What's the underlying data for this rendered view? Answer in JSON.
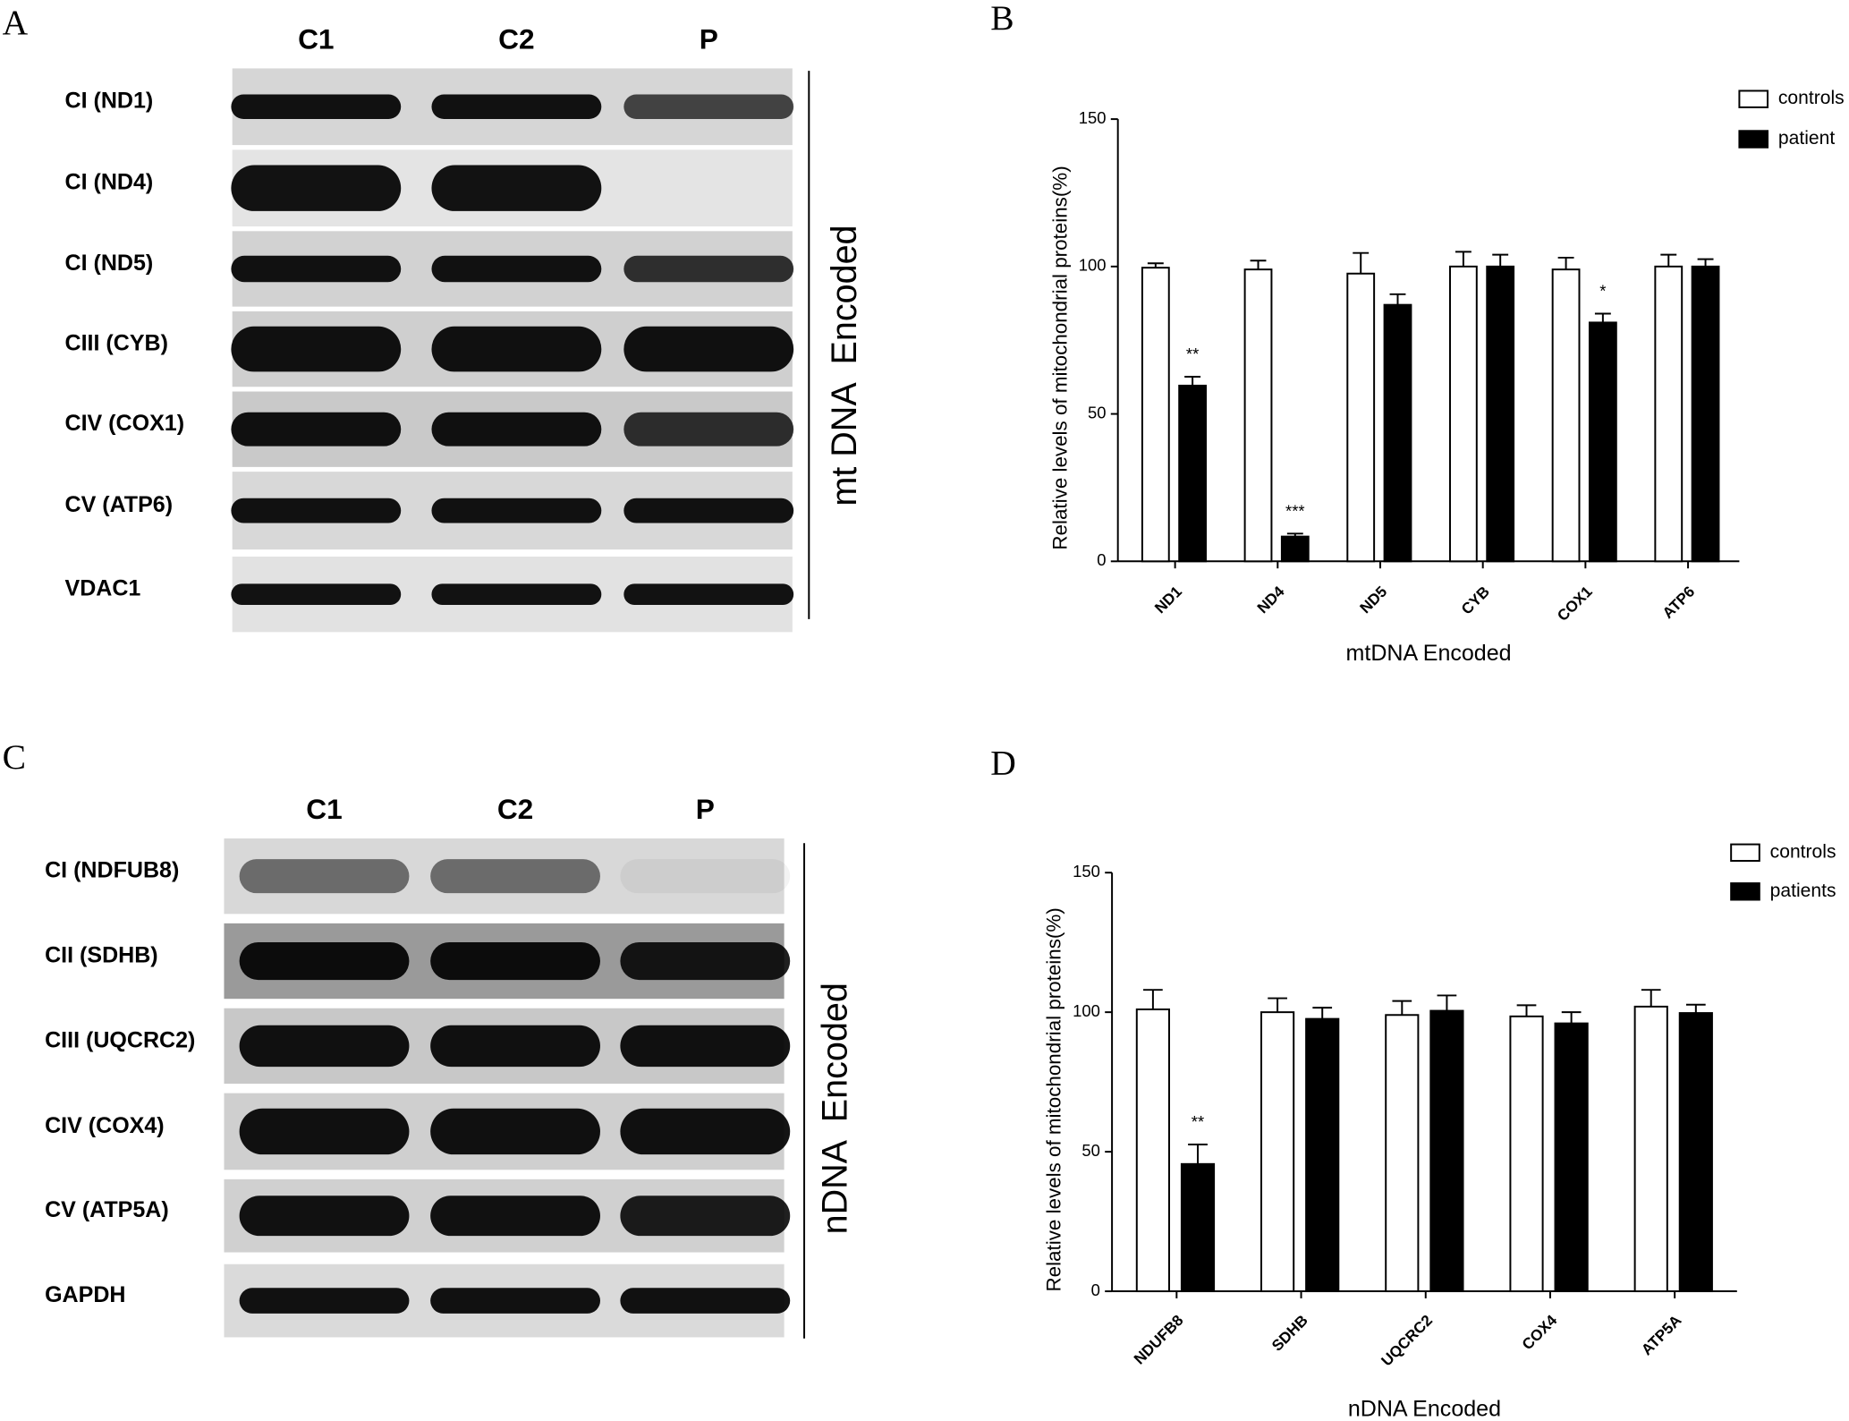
{
  "panels": [
    "A",
    "B",
    "C",
    "D"
  ],
  "blots": [
    {
      "lanes": [
        "C1",
        "C2",
        "P"
      ],
      "rows": [
        "CI (ND1)",
        "CI (ND4)",
        "CI (ND5)",
        "CIII (CYB)",
        "CIV (COX1)",
        "CV (ATP6)",
        "VDAC1"
      ],
      "side_label": "mt DNA  Encoded"
    },
    {
      "lanes": [
        "C1",
        "C2",
        "P"
      ],
      "rows": [
        "CI (NDFUB8)",
        "CII (SDHB)",
        "CIII (UQCRC2)",
        "CIV (COX4)",
        "CV (ATP5A)",
        "GAPDH"
      ],
      "side_label": "nDNA  Encoded"
    }
  ],
  "chart_data": [
    {
      "type": "bar",
      "xlabel": "mtDNA Encoded",
      "ylabel": "Relative levels of mitochondrial proteins(%)",
      "categories": [
        "ND1",
        "ND4",
        "ND5",
        "CYB",
        "COX1",
        "ATP6"
      ],
      "series": [
        {
          "name": "controls",
          "color": "#ffffff",
          "values": [
            99.6,
            99,
            97.6,
            100,
            99,
            100
          ],
          "errors": [
            1.5,
            3,
            7,
            5,
            4,
            4
          ],
          "significance": [
            null,
            null,
            null,
            null,
            null,
            null
          ]
        },
        {
          "name": "patient",
          "color": "#000000",
          "values": [
            59.6,
            8.4,
            87,
            100,
            81,
            100
          ],
          "errors": [
            3,
            1,
            3.6,
            4,
            3,
            2.5
          ],
          "significance": [
            "**",
            "***",
            null,
            null,
            "*",
            null
          ]
        }
      ],
      "ylim": [
        0,
        150
      ],
      "yticks": [
        0,
        50,
        100,
        150
      ],
      "legend": "top-right"
    },
    {
      "type": "bar",
      "xlabel": "nDNA Encoded",
      "ylabel": "Relative levels of mitochondrial proteins(%)",
      "categories": [
        "NDUFB8",
        "SDHB",
        "UQCRC2",
        "COX4",
        "ATP5A"
      ],
      "series": [
        {
          "name": "controls",
          "color": "#ffffff",
          "values": [
            101,
            100,
            99,
            98.5,
            102
          ],
          "errors": [
            7,
            5,
            5,
            4,
            6
          ],
          "significance": [
            null,
            null,
            null,
            null,
            null
          ]
        },
        {
          "name": "patients",
          "color": "#000000",
          "values": [
            45.6,
            97.6,
            100.5,
            96,
            99.7
          ],
          "errors": [
            7,
            4,
            5.5,
            4,
            3
          ],
          "significance": [
            "**",
            null,
            null,
            null,
            null
          ]
        }
      ],
      "ylim": [
        0,
        150
      ],
      "yticks": [
        0,
        50,
        100,
        150
      ],
      "legend": "top-right"
    }
  ]
}
